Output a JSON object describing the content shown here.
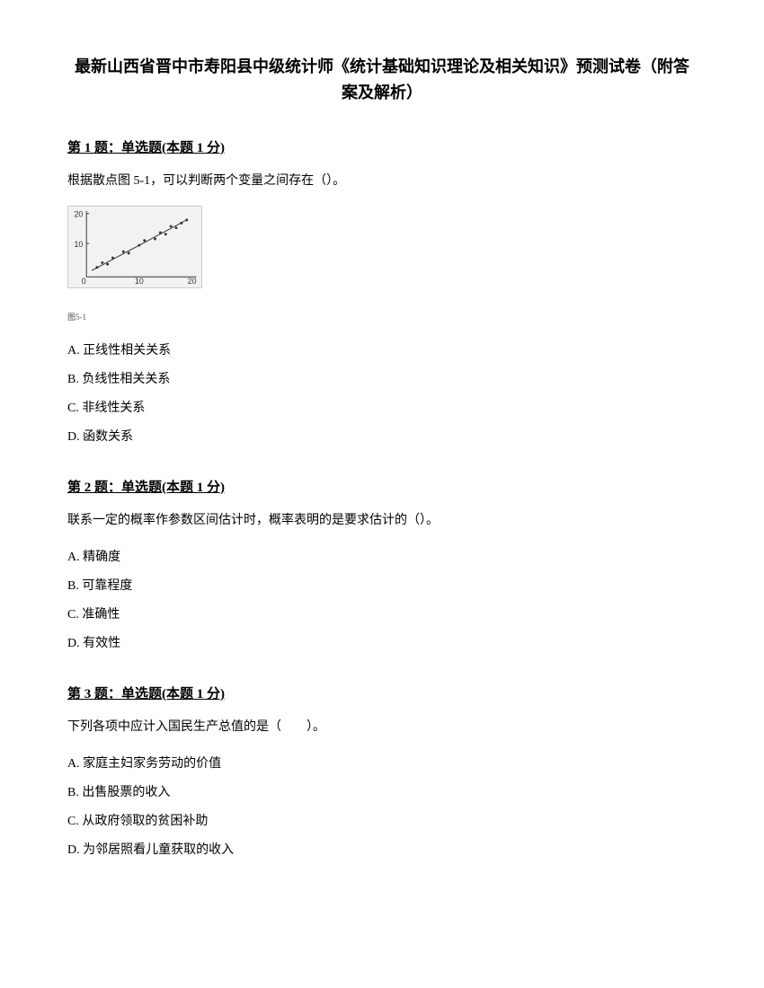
{
  "title": "最新山西省晋中市寿阳县中级统计师《统计基础知识理论及相关知识》预测试卷（附答案及解析）",
  "questions": [
    {
      "header": "第 1 题：单选题(本题 1 分)",
      "text": "根据散点图 5-1，可以判断两个变量之间存在（）。",
      "hasChart": true,
      "options": [
        "A. 正线性相关关系",
        "B. 负线性相关关系",
        "C. 非线性关系",
        "D. 函数关系"
      ]
    },
    {
      "header": "第 2 题：单选题(本题 1 分)",
      "text": "联系一定的概率作参数区间估计时，概率表明的是要求估计的（）。",
      "hasChart": false,
      "options": [
        "A. 精确度",
        "B. 可靠程度",
        "C. 准确性",
        "D. 有效性"
      ]
    },
    {
      "header": "第 3 题：单选题(本题 1 分)",
      "text": "下列各项中应计入国民生产总值的是（　　）。",
      "hasChart": false,
      "options": [
        "A. 家庭主妇家务劳动的价值",
        "B. 出售股票的收入",
        "C. 从政府领取的贫困补助",
        "D. 为邻居照看儿童获取的收入"
      ]
    }
  ],
  "chart": {
    "type": "scatter",
    "background_color": "#f2f2f2",
    "axis_color": "#333333",
    "point_color": "#333333",
    "line_color": "#333333",
    "xlim": [
      0,
      20
    ],
    "ylim": [
      0,
      20
    ],
    "xticks": [
      0,
      10,
      20
    ],
    "yticks": [
      10,
      20
    ],
    "xtick_labels": [
      "0",
      "10",
      "20"
    ],
    "ytick_labels": [
      "10",
      "20"
    ],
    "points": [
      [
        2,
        3
      ],
      [
        3,
        4.5
      ],
      [
        4,
        4
      ],
      [
        5,
        6
      ],
      [
        7,
        8
      ],
      [
        8,
        7.5
      ],
      [
        10,
        10
      ],
      [
        11,
        11.5
      ],
      [
        13,
        12
      ],
      [
        14,
        14
      ],
      [
        15,
        13.5
      ],
      [
        16,
        16
      ],
      [
        17,
        15.5
      ],
      [
        18,
        17
      ],
      [
        19,
        18
      ]
    ],
    "trend_line": {
      "x1": 1,
      "y1": 2,
      "x2": 19,
      "y2": 18
    },
    "caption": "图5-1"
  }
}
